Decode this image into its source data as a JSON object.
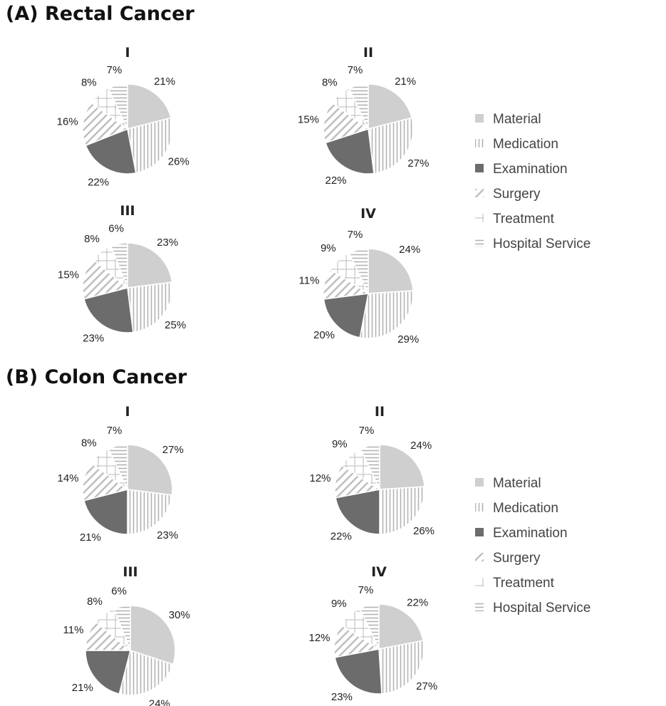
{
  "categories": [
    "Material",
    "Medication",
    "Examination",
    "Surgery",
    "Treatment",
    "Hospital Service"
  ],
  "category_styles": {
    "Material": {
      "fill": "#cfcfcf",
      "pattern": "solid"
    },
    "Medication": {
      "fill": "#ffffff",
      "pattern": "vertical",
      "line": "#b4b4b4"
    },
    "Examination": {
      "fill": "#6c6c6c",
      "pattern": "solid"
    },
    "Surgery": {
      "fill": "#ffffff",
      "pattern": "diagonal",
      "line": "#bcbcbc"
    },
    "Treatment": {
      "fill": "#ffffff",
      "pattern": "cross",
      "line": "#c4c4c4"
    },
    "Hospital Service": {
      "fill": "#ffffff",
      "pattern": "horizontal",
      "line": "#b4b4b4"
    }
  },
  "panels": [
    {
      "title": "(A) Rectal Cancer",
      "legend": [
        "Material",
        "Medication",
        "Examination",
        "Surgery",
        "Treatment",
        "Hospital Service"
      ],
      "pies": [
        {
          "stage": "I",
          "values": [
            21,
            26,
            22,
            16,
            8,
            7
          ],
          "labels": [
            "21%",
            "26%",
            "22%",
            "16%",
            "8%",
            "7%"
          ]
        },
        {
          "stage": "II",
          "values": [
            21,
            27,
            22,
            15,
            8,
            7
          ],
          "labels": [
            "21%",
            "27%",
            "22%",
            "15%",
            "8%",
            "7%"
          ]
        },
        {
          "stage": "III",
          "values": [
            23,
            25,
            23,
            15,
            8,
            6
          ],
          "labels": [
            "23%",
            "25%",
            "23%",
            "15%",
            "8%",
            "6%"
          ]
        },
        {
          "stage": "IV",
          "values": [
            24,
            29,
            20,
            11,
            9,
            7
          ],
          "labels": [
            "24%",
            "29%",
            "20%",
            "11%",
            "9%",
            "7%"
          ]
        }
      ]
    },
    {
      "title": "(B) Colon Cancer",
      "legend": [
        "Material",
        "Medication",
        "Examination",
        "Surgery",
        "Treatment",
        "Hospital Service"
      ],
      "pies": [
        {
          "stage": "I",
          "values": [
            27,
            23,
            21,
            14,
            8,
            7
          ],
          "labels": [
            "27%",
            "23%",
            "21%",
            "14%",
            "8%",
            "7%"
          ]
        },
        {
          "stage": "II",
          "values": [
            24,
            26,
            22,
            12,
            9,
            7
          ],
          "labels": [
            "24%",
            "26%",
            "22%",
            "12%",
            "9%",
            "7%"
          ]
        },
        {
          "stage": "III",
          "values": [
            30,
            24,
            21,
            11,
            8,
            6
          ],
          "labels": [
            "30%",
            "24%",
            "21%",
            "11%",
            "8%",
            "6%"
          ]
        },
        {
          "stage": "IV",
          "values": [
            22,
            27,
            23,
            12,
            9,
            7
          ],
          "labels": [
            "22%",
            "27%",
            "23%",
            "12%",
            "9%",
            "7%"
          ]
        }
      ]
    }
  ],
  "chart_data": [
    {
      "type": "pie",
      "title": "(A) Rectal Cancer — I",
      "categories": [
        "Material",
        "Medication",
        "Examination",
        "Surgery",
        "Treatment",
        "Hospital Service"
      ],
      "values": [
        21,
        26,
        22,
        16,
        8,
        7
      ]
    },
    {
      "type": "pie",
      "title": "(A) Rectal Cancer — II",
      "categories": [
        "Material",
        "Medication",
        "Examination",
        "Surgery",
        "Treatment",
        "Hospital Service"
      ],
      "values": [
        21,
        27,
        22,
        15,
        8,
        7
      ]
    },
    {
      "type": "pie",
      "title": "(A) Rectal Cancer — III",
      "categories": [
        "Material",
        "Medication",
        "Examination",
        "Surgery",
        "Treatment",
        "Hospital Service"
      ],
      "values": [
        23,
        25,
        23,
        15,
        8,
        6
      ]
    },
    {
      "type": "pie",
      "title": "(A) Rectal Cancer — IV",
      "categories": [
        "Material",
        "Medication",
        "Examination",
        "Surgery",
        "Treatment",
        "Hospital Service"
      ],
      "values": [
        24,
        29,
        20,
        11,
        9,
        7
      ]
    },
    {
      "type": "pie",
      "title": "(B) Colon Cancer — I",
      "categories": [
        "Material",
        "Medication",
        "Examination",
        "Surgery",
        "Treatment",
        "Hospital Service"
      ],
      "values": [
        27,
        23,
        21,
        14,
        8,
        7
      ]
    },
    {
      "type": "pie",
      "title": "(B) Colon Cancer — II",
      "categories": [
        "Material",
        "Medication",
        "Examination",
        "Surgery",
        "Treatment",
        "Hospital Service"
      ],
      "values": [
        24,
        26,
        22,
        12,
        9,
        7
      ]
    },
    {
      "type": "pie",
      "title": "(B) Colon Cancer — III",
      "categories": [
        "Material",
        "Medication",
        "Examination",
        "Surgery",
        "Treatment",
        "Hospital Service"
      ],
      "values": [
        30,
        24,
        21,
        11,
        8,
        6
      ]
    },
    {
      "type": "pie",
      "title": "(B) Colon Cancer — IV",
      "categories": [
        "Material",
        "Medication",
        "Examination",
        "Surgery",
        "Treatment",
        "Hospital Service"
      ],
      "values": [
        22,
        27,
        23,
        12,
        9,
        7
      ]
    }
  ]
}
